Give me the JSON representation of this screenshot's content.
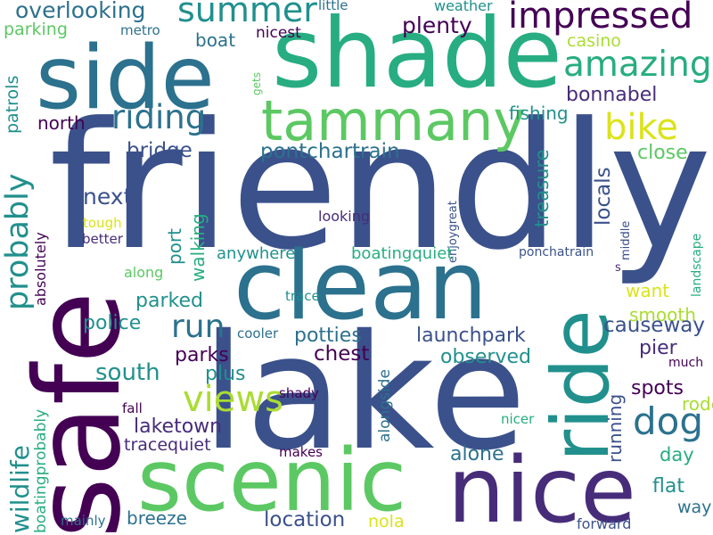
{
  "palette": [
    "#440154",
    "#472c7a",
    "#3b518b",
    "#2c718e",
    "#21908d",
    "#27ad81",
    "#5cc863",
    "#aadc32",
    "#dbe319"
  ],
  "words": {
    "friendly": "friendly",
    "lake": "lake",
    "shade": "shade",
    "safe": "safe",
    "clean": "clean",
    "side": "side",
    "ride": "ride",
    "nice": "nice",
    "scenic": "scenic",
    "tammany": "tammany",
    "impressed": "impressed",
    "summer": "summer",
    "amazing": "amazing",
    "riding": "riding",
    "bike": "bike",
    "views": "views",
    "dog": "dog",
    "run": "run",
    "probably": "probably",
    "wildlife": "wildlife",
    "overlooking": "overlooking",
    "weather": "weather",
    "little": "little",
    "parking": "parking",
    "metro": "metro",
    "boat": "boat",
    "nicest": "nicest",
    "plenty": "plenty",
    "casino": "casino",
    "bonnabel": "bonnabel",
    "fishing": "fishing",
    "north": "north",
    "patrols": "patrols",
    "gets": "gets",
    "pontchartrain": "pontchartrain",
    "bridge": "bridge",
    "close": "close",
    "locals": "locals",
    "treasure": "treasure",
    "next": "next",
    "enjoygreat": "enjoygreat",
    "looking": "looking",
    "middle": "middle",
    "landscape": "landscape",
    "ponchatrain": "ponchatrain",
    "s": "s",
    "tough": "tough",
    "better": "better",
    "absolutely": "absolutely",
    "port": "port",
    "walking": "walking",
    "anywhere": "anywhere",
    "boatingquiet": "boatingquiet",
    "along": "along",
    "want": "want",
    "parked": "parked",
    "trace": "trace",
    "smooth": "smooth",
    "police": "police",
    "cooler": "cooler",
    "potties": "potties",
    "launchpark": "launchpark",
    "causeway": "causeway",
    "chest": "chest",
    "parks": "parks",
    "observed": "observed",
    "pier": "pier",
    "much": "much",
    "south": "south",
    "plus": "plus",
    "spots": "spots",
    "shady": "shady",
    "alongside": "alongside",
    "rode": "rode",
    "fall": "fall",
    "laketown": "laketown",
    "tracequiet": "tracequiet",
    "running": "running",
    "nicer": "nicer",
    "boatingprobably": "boatingprobably",
    "makes": "makes",
    "alone": "alone",
    "day": "day",
    "flat": "flat",
    "way": "way",
    "mainly": "mainly",
    "breeze": "breeze",
    "location": "location",
    "nola": "nola",
    "forward": "forward"
  }
}
